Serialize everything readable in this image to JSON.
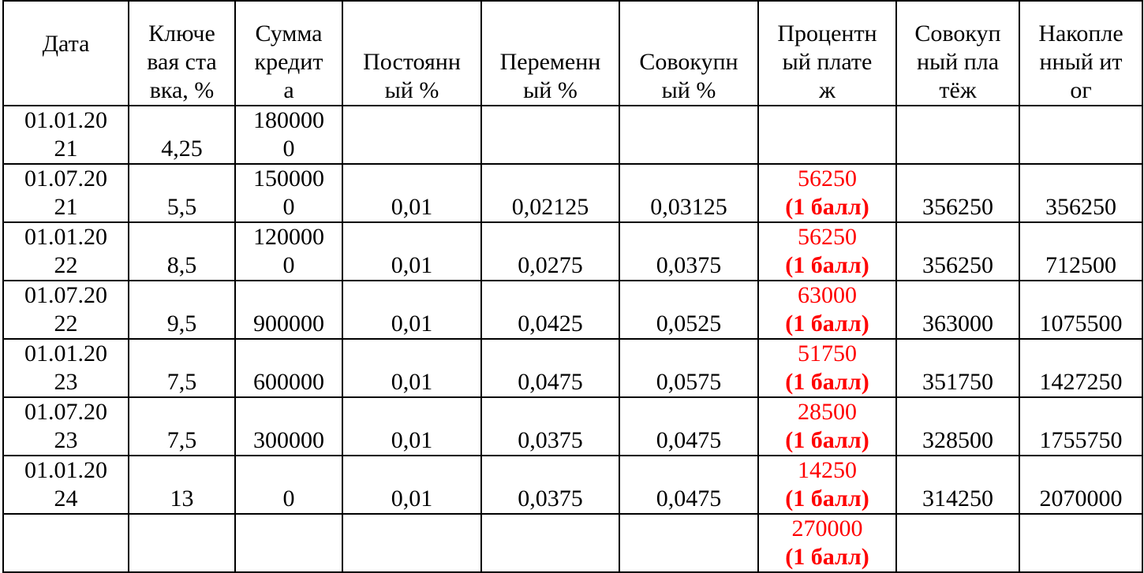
{
  "table": {
    "headers": [
      "Дата",
      "Ключевая ставка, %",
      "Сумма кредита",
      "Постоянный %",
      "Переменный %",
      "Совокупный %",
      "Процентный платеж",
      "Совокупный платёж",
      "Накопленный итог"
    ],
    "rows": [
      [
        "01.01.2021",
        "4,25",
        "1800000",
        null,
        null,
        null,
        null,
        null,
        null
      ],
      [
        "01.07.2021",
        "5,5",
        "1500000",
        "0,01",
        "0,02125",
        "0,03125",
        {
          "value": "56250",
          "note": "(1 балл)"
        },
        "356250",
        "356250"
      ],
      [
        "01.01.2022",
        "8,5",
        "1200000",
        "0,01",
        "0,0275",
        "0,0375",
        {
          "value": "56250",
          "note": "(1 балл)"
        },
        "356250",
        "712500"
      ],
      [
        "01.07.2022",
        "9,5",
        "900000",
        "0,01",
        "0,0425",
        "0,0525",
        {
          "value": "63000",
          "note": "(1 балл)"
        },
        "363000",
        "1075500"
      ],
      [
        "01.01.2023",
        "7,5",
        "600000",
        "0,01",
        "0,0475",
        "0,0575",
        {
          "value": "51750",
          "note": "(1 балл)"
        },
        "351750",
        "1427250"
      ],
      [
        "01.07.2023",
        "7,5",
        "300000",
        "0,01",
        "0,0375",
        "0,0475",
        {
          "value": "28500",
          "note": "(1 балл)"
        },
        "328500",
        "1755750"
      ],
      [
        "01.01.2024",
        "13",
        "0",
        "0,01",
        "0,0375",
        "0,0475",
        {
          "value": "14250",
          "note": "(1 балл)"
        },
        "314250",
        "2070000"
      ],
      [
        null,
        null,
        null,
        null,
        null,
        null,
        {
          "value": "270000",
          "note": "(1 балл)"
        },
        null,
        null
      ]
    ]
  }
}
